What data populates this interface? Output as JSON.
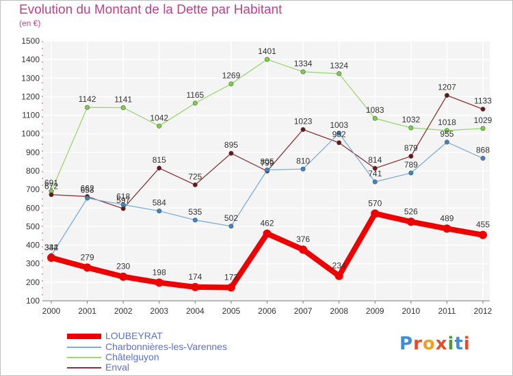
{
  "title": "Evolution du Montant de la Dette par Habitant",
  "unit": "(en €)",
  "logo": {
    "letters": [
      "P",
      "r",
      "o",
      "x",
      "i",
      "t",
      "i"
    ],
    "colors": [
      "#3b8fd8",
      "#e84b2a",
      "#f0a020",
      "#e84b2a",
      "#4a9a3a",
      "#3b8fd8",
      "#e84b2a"
    ]
  },
  "chart_data": {
    "type": "line",
    "title": "Evolution du Montant de la Dette par Habitant",
    "ylabel": "(en €)",
    "xlabel": "",
    "x": [
      "2000",
      "2001",
      "2002",
      "2003",
      "2004",
      "2005",
      "2006",
      "2007",
      "2008",
      "2009",
      "2010",
      "2011",
      "2012"
    ],
    "ylim": [
      100,
      1500
    ],
    "yticks": [
      "100",
      "200",
      "300",
      "400",
      "500",
      "600",
      "700",
      "800",
      "900",
      "1000",
      "1100",
      "1200",
      "1300",
      "1400",
      "1500"
    ],
    "grid": true,
    "legend": "bottom-left",
    "series": [
      {
        "name": "LOUBEYRAT",
        "color": "#ee0000",
        "line": "#ee0000",
        "values": [
          332,
          279,
          230,
          198,
          174,
          172,
          462,
          376,
          234,
          570,
          526,
          489,
          455
        ],
        "labels": [
          "332",
          "279",
          "230",
          "198",
          "174",
          "172",
          "462",
          "376",
          "234",
          "570",
          "526",
          "489",
          "455"
        ]
      },
      {
        "name": "Charbonnières-les-Varennes",
        "color": "#3a86c8",
        "line": "#7aaed8",
        "values": [
          344,
          653,
          618,
          584,
          535,
          502,
          805,
          810,
          1003,
          741,
          789,
          955,
          868
        ],
        "labels": [
          "344",
          "653",
          "618",
          "584",
          "535",
          "502",
          "805",
          "810",
          "1003",
          "741",
          "789",
          "955",
          "868"
        ]
      },
      {
        "name": "Châtelguyon",
        "color": "#7ad043",
        "line": "#99d870",
        "values": [
          691,
          1142,
          1141,
          1042,
          1165,
          1269,
          1401,
          1334,
          1324,
          1083,
          1032,
          1018,
          1029
        ],
        "labels": [
          "691",
          "1142",
          "1141",
          "1042",
          "1165",
          "1269",
          "1401",
          "1334",
          "1324",
          "1083",
          "1032",
          "1018",
          "1029"
        ]
      },
      {
        "name": "Enval",
        "color": "#6a1616",
        "line": "#8a3434",
        "values": [
          672,
          662,
          597,
          815,
          725,
          895,
          799,
          1023,
          952,
          814,
          879,
          1207,
          1133
        ],
        "labels": [
          "672",
          "662",
          "597",
          "815",
          "725",
          "895",
          "799",
          "1023",
          "952",
          "814",
          "879",
          "1207",
          "1133"
        ]
      }
    ]
  }
}
